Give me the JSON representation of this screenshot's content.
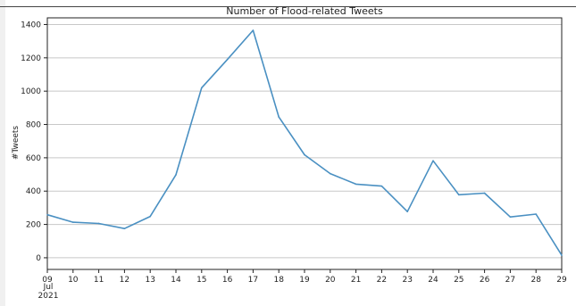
{
  "chart_data": {
    "type": "line",
    "title": "Number of Flood-related Tweets",
    "ylabel": "#Tweets",
    "xlabel": "",
    "x_ticks": [
      "09",
      "10",
      "11",
      "12",
      "13",
      "14",
      "15",
      "16",
      "17",
      "18",
      "19",
      "20",
      "21",
      "22",
      "23",
      "24",
      "25",
      "26",
      "27",
      "28",
      "29"
    ],
    "x_sublabels": [
      "Jul",
      "2021"
    ],
    "y_ticks": [
      0,
      200,
      400,
      600,
      800,
      1000,
      1200,
      1400
    ],
    "ylim": [
      -70,
      1440
    ],
    "grid": "horizontal",
    "series": [
      {
        "color": "#4a90c2",
        "x": [
          "2021-07-09",
          "2021-07-10",
          "2021-07-11",
          "2021-07-12",
          "2021-07-13",
          "2021-07-14",
          "2021-07-15",
          "2021-07-16",
          "2021-07-17",
          "2021-07-18",
          "2021-07-19",
          "2021-07-20",
          "2021-07-21",
          "2021-07-22",
          "2021-07-23",
          "2021-07-24",
          "2021-07-25",
          "2021-07-26",
          "2021-07-27",
          "2021-07-28",
          "2021-07-29"
        ],
        "values": [
          258,
          213,
          206,
          175,
          248,
          498,
          1020,
          1190,
          1365,
          845,
          618,
          505,
          442,
          430,
          277,
          582,
          378,
          388,
          245,
          262,
          15
        ]
      }
    ]
  }
}
